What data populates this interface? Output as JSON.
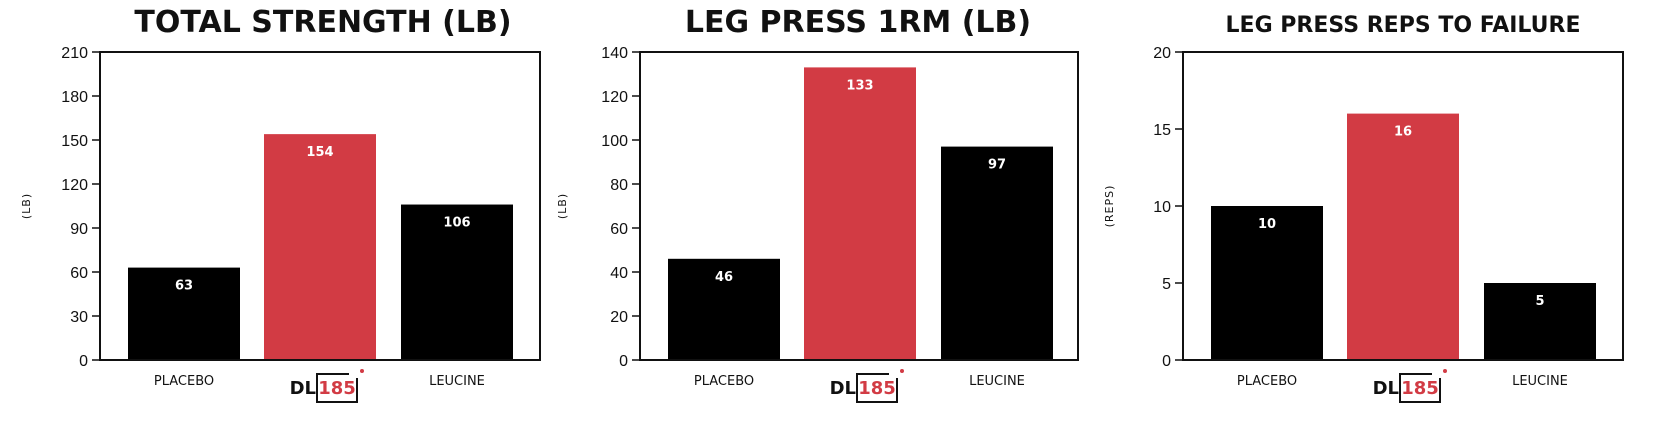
{
  "colors": {
    "placebo": "#000000",
    "dl185": "#d23b44",
    "leucine": "#000000",
    "axis": "#111111"
  },
  "chart_data": [
    {
      "type": "bar",
      "title": "TOTAL STRENGTH (LB)",
      "ylabel": "(LB)",
      "xlabel": "",
      "categories": [
        "PLACEBO",
        "DL185",
        "LEUCINE"
      ],
      "values": [
        63,
        154,
        106
      ],
      "ylim": [
        0,
        210
      ],
      "yticks": [
        0,
        30,
        60,
        90,
        120,
        150,
        180,
        210
      ],
      "grid": false,
      "legend": "none"
    },
    {
      "type": "bar",
      "title": "LEG PRESS 1RM (LB)",
      "ylabel": "(LB)",
      "xlabel": "",
      "categories": [
        "PLACEBO",
        "DL185",
        "LEUCINE"
      ],
      "values": [
        46,
        133,
        97
      ],
      "ylim": [
        0,
        140
      ],
      "yticks": [
        0,
        20,
        40,
        60,
        80,
        100,
        120,
        140
      ],
      "grid": false,
      "legend": "none"
    },
    {
      "type": "bar",
      "title": "LEG PRESS REPS TO FAILURE",
      "ylabel": "(REPS)",
      "xlabel": "",
      "categories": [
        "PLACEBO",
        "DL185",
        "LEUCINE"
      ],
      "values": [
        10,
        16,
        5
      ],
      "ylim": [
        0,
        20
      ],
      "yticks": [
        0,
        5,
        10,
        15,
        20
      ],
      "grid": false,
      "legend": "none"
    }
  ],
  "logo": {
    "prefix": "DL",
    "number": "185"
  }
}
